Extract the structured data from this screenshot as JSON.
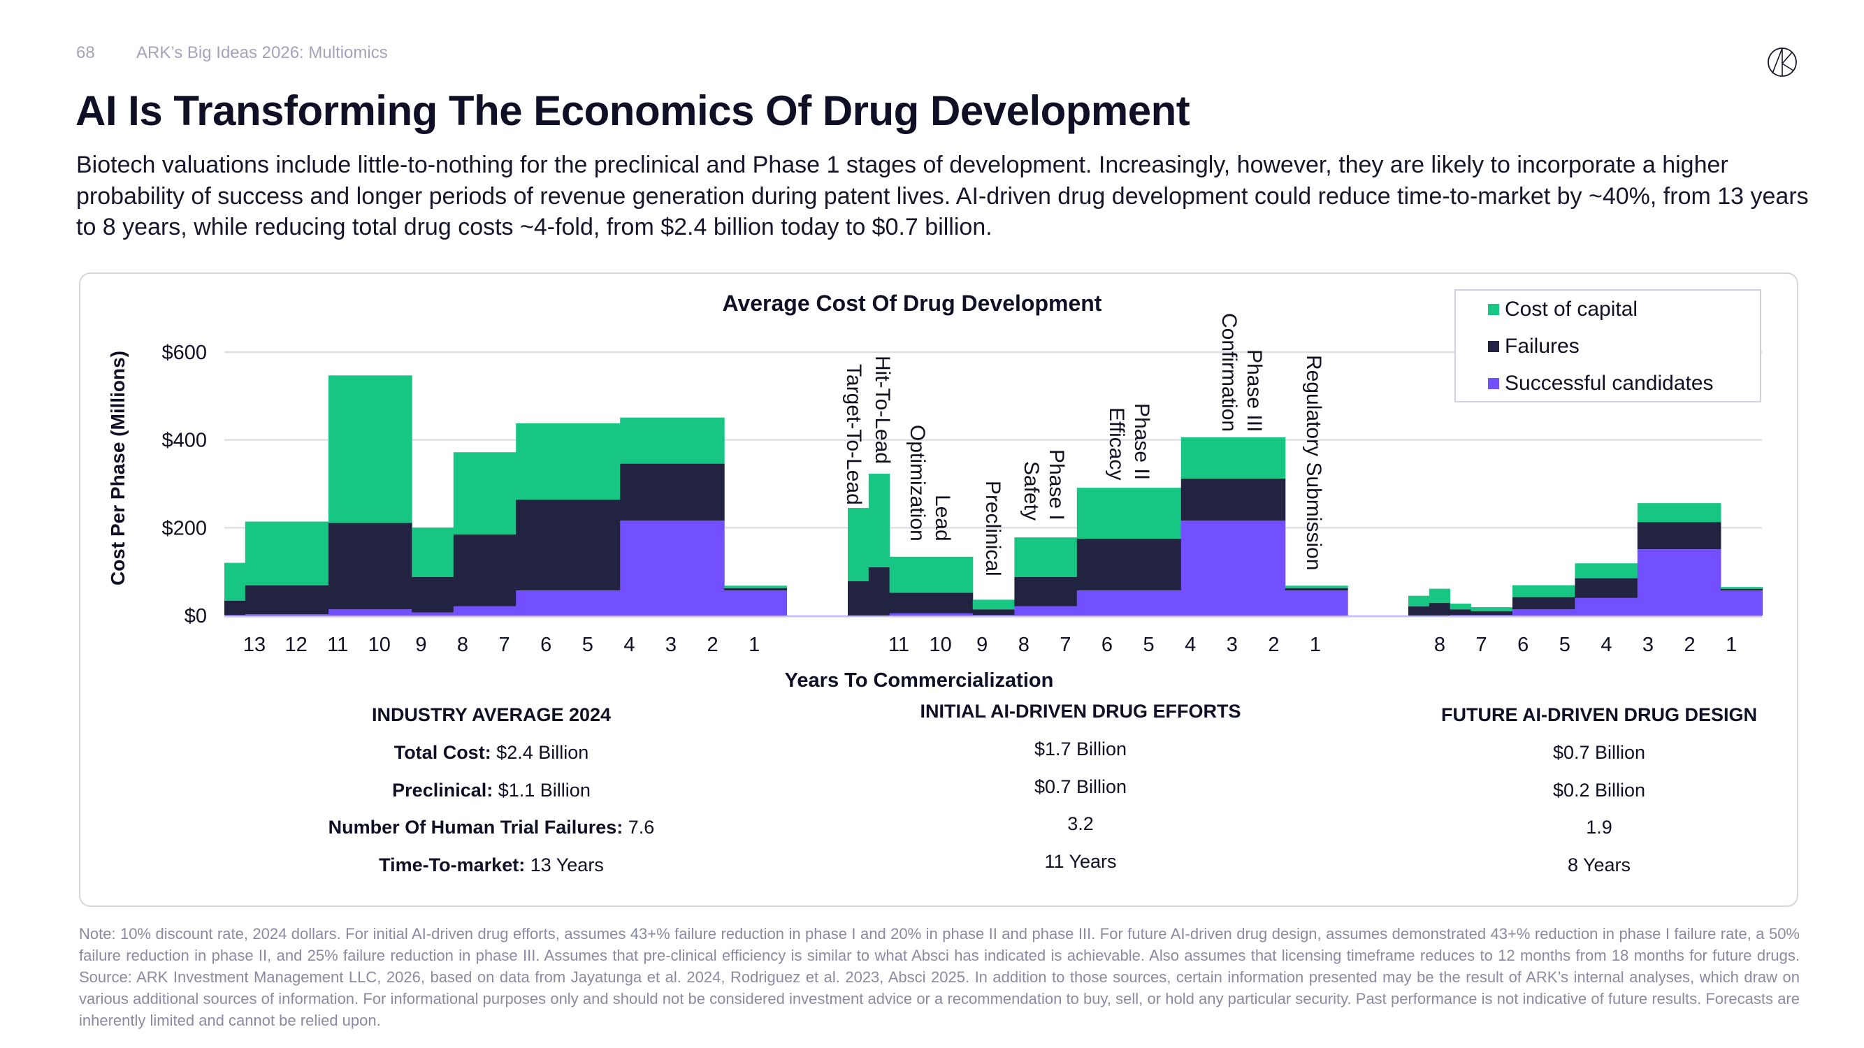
{
  "header": {
    "page_number": "68",
    "deck_title": "ARK’s Big Ideas 2026: Multiomics"
  },
  "title": "AI Is Transforming The Economics Of Drug Development",
  "subtitle": "Biotech valuations include little-to-nothing for the preclinical and Phase 1 stages of development. Increasingly, however, they are likely to incorporate a higher probability of success and longer periods of revenue generation during patent lives. AI-driven drug development could reduce time-to-market by ~40%, from 13 years to 8 years, while reducing total drug costs ~4-fold, from $2.4 billion today to $0.7 billion.",
  "chart_data": {
    "type": "bar",
    "subtype": "stacked variable-width step bars",
    "title": "Average Cost Of Drug Development",
    "xlabel": "Years To Commercialization",
    "ylabel": "Cost Per Phase (Millions)",
    "ylim": [
      0,
      600
    ],
    "yticks": [
      "$0",
      "$200",
      "$400",
      "$600"
    ],
    "ytick_values": [
      0,
      200,
      400,
      600
    ],
    "grid": true,
    "legend_position": "top-right",
    "colors": {
      "Cost of capital": "#18C684",
      "Failures": "#212340",
      "Successful candidates": "#7350FF"
    },
    "legend": [
      "Cost of capital",
      "Failures",
      "Successful candidates"
    ],
    "panels": [
      {
        "name": "INDUSTRY AVERAGE 2024",
        "xticks": [
          "13",
          "12",
          "11",
          "10",
          "9",
          "8",
          "7",
          "6",
          "5",
          "4",
          "3",
          "2",
          "1"
        ],
        "phase_durations_years": [
          0.5,
          2,
          2,
          1,
          1.5,
          2.5,
          2.5,
          1.5
        ],
        "series": [
          {
            "name": "Successful candidates",
            "values": [
              1,
              3,
              14,
              7,
              21,
              57,
              216,
              57
            ]
          },
          {
            "name": "Failures",
            "values": [
              33,
              66,
              197,
              81,
              164,
              207,
              130,
              5
            ]
          },
          {
            "name": "Cost of capital",
            "values": [
              86,
              145,
              336,
              112,
              187,
              174,
              105,
              6
            ]
          }
        ]
      },
      {
        "name": "INITIAL AI-DRIVEN DRUG EFFORTS",
        "xticks": [
          "11",
          "10",
          "9",
          "8",
          "7",
          "6",
          "5",
          "4",
          "3",
          "2",
          "1"
        ],
        "phase_durations_years": [
          0.5,
          0.5,
          2,
          1,
          1.5,
          2.5,
          2.5,
          1.5
        ],
        "phase_labels": [
          [
            "Target-To-Lead"
          ],
          [
            "Hit-To-Lead"
          ],
          [
            "Lead",
            "Optimization"
          ],
          [
            "Preclinical"
          ],
          [
            "Phase I",
            "Safety"
          ],
          [
            "Phase II",
            "Efficacy"
          ],
          [
            "Phase III",
            "Confirmation"
          ],
          [
            "Regulatory Submission"
          ]
        ],
        "series": [
          {
            "name": "Successful candidates",
            "values": [
              0,
              0,
              5,
              1,
              21,
              57,
              216,
              57
            ]
          },
          {
            "name": "Failures",
            "values": [
              78,
              110,
              47,
              13,
              67,
              118,
              96,
              5
            ]
          },
          {
            "name": "Cost of capital",
            "values": [
              167,
              213,
              82,
              22,
              90,
              116,
              94,
              6
            ]
          }
        ]
      },
      {
        "name": "FUTURE AI-DRIVEN DRUG DESIGN",
        "xticks": [
          "8",
          "7",
          "6",
          "5",
          "4",
          "3",
          "2",
          "1"
        ],
        "phase_durations_years": [
          0.5,
          0.5,
          0.5,
          1,
          1.5,
          1.5,
          2,
          1
        ],
        "series": [
          {
            "name": "Successful candidates",
            "values": [
              0,
              0,
              1,
              1,
              14,
              40,
              151,
              57
            ]
          },
          {
            "name": "Failures",
            "values": [
              21,
              29,
              13,
              9,
              28,
              45,
              62,
              4
            ]
          },
          {
            "name": "Cost of capital",
            "values": [
              24,
              32,
              13,
              9,
              27,
              34,
              43,
              4
            ]
          }
        ]
      }
    ]
  },
  "stats": {
    "row_labels": [
      "Total Cost:",
      "Preclinical:",
      "Number Of Human Trial Failures:",
      "Time-To-market:"
    ],
    "columns": [
      {
        "heading": "INDUSTRY AVERAGE 2024",
        "values": [
          "$2.4 Billion",
          "$1.1 Billion",
          "7.6",
          "13 Years"
        ]
      },
      {
        "heading": "INITIAL AI-DRIVEN DRUG EFFORTS",
        "values": [
          "$1.7 Billion",
          "$0.7 Billion",
          "3.2",
          "11 Years"
        ]
      },
      {
        "heading": "FUTURE AI-DRIVEN DRUG DESIGN",
        "values": [
          "$0.7 Billion",
          "$0.2 Billion",
          "1.9",
          "8 Years"
        ]
      }
    ]
  },
  "footnote": "Note: 10% discount rate, 2024 dollars. For initial AI-driven drug efforts, assumes 43+% failure reduction in phase I and 20% in phase II and phase III. For future AI-driven drug design, assumes demonstrated 43+% reduction in phase I failure rate, a 50% failure reduction in phase II, and 25% failure reduction in phase III. Assumes that pre-clinical efficiency is similar to what Absci has indicated is achievable. Also assumes that licensing timeframe reduces to 12 months from 18 months for future drugs. Source: ARK Investment Management LLC, 2026, based on data from Jayatunga et al. 2024, Rodriguez et al. 2023, Absci 2025. In addition to those sources, certain information presented may be the result of ARK’s internal analyses, which draw on various additional sources of information. For informational purposes only and should not be considered investment advice or a recommendation to buy, sell, or hold any particular security. Past performance is not indicative of future results. Forecasts are inherently limited and cannot be relied upon.",
  "logo": {
    "text": "ARK",
    "icon": "ark-logo-icon"
  }
}
